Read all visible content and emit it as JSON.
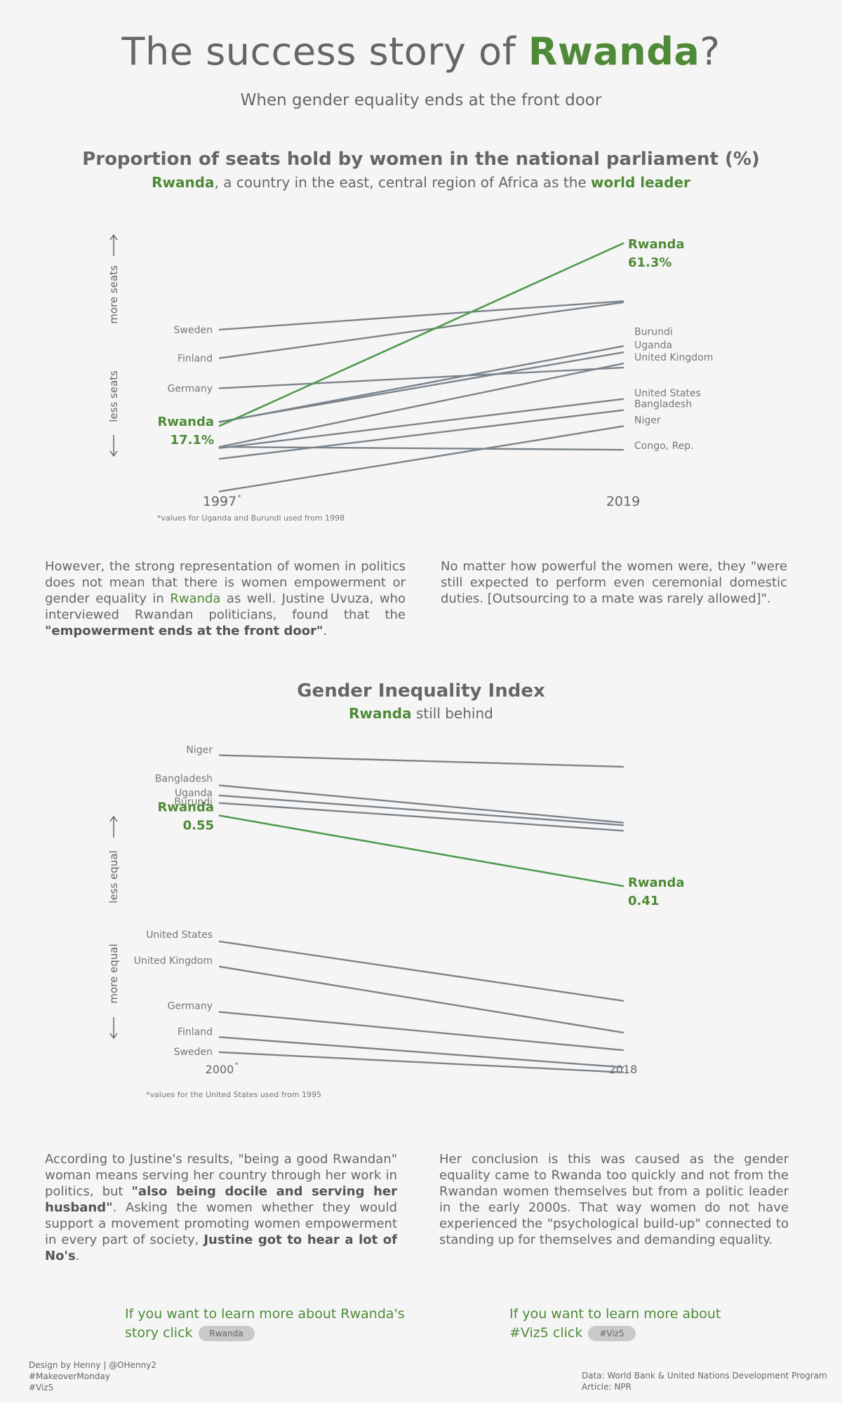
{
  "header": {
    "title_prefix": "The success story of ",
    "title_highlight": "Rwanda",
    "title_suffix": "?",
    "subtitle": "When gender equality ends at the front door"
  },
  "chart1": {
    "title": "Proportion of seats hold by women in the national parliament (%)",
    "subtitle_highlight": "Rwanda",
    "subtitle_middle": ", a country in the east, central region of Africa as the ",
    "subtitle_end": "world leader",
    "axis_up_label": "more seats",
    "axis_down_label": "less seats",
    "footnote": "*values for Uganda and Burundi used from 1998"
  },
  "para1": {
    "part1": "However, the strong representation of women in politics does not mean that there is women empowerment or gender equality in ",
    "highlight": "Rwanda",
    "part2": " as well. Justine Uvuza, who interviewed Rwandan politicians, found that the ",
    "bold": "\"empowerment ends at the front door\"",
    "part3": "."
  },
  "para2": {
    "text": "No matter how powerful the women were, they \"were still expected to perform even ceremonial domestic duties. [Outsourcing to a mate was rarely allowed]\"."
  },
  "chart2": {
    "title": "Gender Inequality Index",
    "subtitle_highlight": "Rwanda",
    "subtitle_rest": " still behind",
    "axis_up_label": "less equal",
    "axis_down_label": "more equal",
    "footnote": "*values for the United States used from 1995"
  },
  "para3": {
    "part1": "According to Justine's results, \"being a good Rwandan\" woman means serving her country through her work in politics, but ",
    "bold1": "\"also being docile and serving her husband\"",
    "part2": ". Asking the women whether they would support a movement promoting women empowerment in every part of society, ",
    "bold2": "Justine got to hear a lot of No's",
    "part3": "."
  },
  "para4": {
    "text": "Her conclusion is this was caused as the gender equality came to Rwanda too quickly and not from the Rwandan women themselves but from a politic leader in the early 2000s. That way women do not have experienced the \"psychological build-up\" connected to standing up for themselves and demanding equality."
  },
  "cta_left": {
    "text": "If you want to learn more about Rwanda's story click",
    "button": "Rwanda"
  },
  "cta_right": {
    "text": "If you want to learn more about #Viz5 click",
    "button": "#Viz5"
  },
  "footer_left": {
    "line1": "Design by Henny | @OHenny2",
    "line2": "#MakeoverMonday",
    "line3": "#Viz5"
  },
  "footer_right": {
    "line1": "Data: World Bank & United Nations Development Program",
    "line2": "Article: NPR"
  },
  "colors": {
    "accent": "#4e8a37",
    "rwanda_line": "#4f9a4f",
    "other_line": "#7b848b",
    "background": "#f5f5f5"
  },
  "chart_data": [
    {
      "type": "line",
      "title": "Proportion of seats hold by women in the national parliament (%)",
      "x": [
        "1997*",
        "2019"
      ],
      "ylim": [
        3,
        64
      ],
      "series": [
        {
          "name": "Rwanda",
          "values": [
            17.1,
            61.3
          ],
          "highlight": true,
          "value_labels": [
            "17.1%",
            "61.3%"
          ]
        },
        {
          "name": "Sweden",
          "values": [
            40.4,
            47.3
          ]
        },
        {
          "name": "Finland",
          "values": [
            33.5,
            47.0
          ]
        },
        {
          "name": "Germany",
          "values": [
            26.2,
            31.2
          ]
        },
        {
          "name": "Burundi",
          "values": [
            18.0,
            36.4
          ]
        },
        {
          "name": "Uganda",
          "values": [
            18.1,
            34.9
          ]
        },
        {
          "name": "United Kingdom",
          "values": [
            12.0,
            32.2
          ]
        },
        {
          "name": "United States",
          "values": [
            11.7,
            23.6
          ]
        },
        {
          "name": "Bangladesh",
          "values": [
            9.1,
            20.9
          ]
        },
        {
          "name": "Niger",
          "values": [
            1.2,
            17.0
          ]
        },
        {
          "name": "Congo, Rep.",
          "values": [
            12.0,
            11.3
          ]
        }
      ]
    },
    {
      "type": "line",
      "title": "Gender Inequality Index",
      "x": [
        "2000*",
        "2018"
      ],
      "ylim": [
        0.02,
        0.7
      ],
      "series": [
        {
          "name": "Niger",
          "values": [
            0.67,
            0.647
          ]
        },
        {
          "name": "Bangladesh",
          "values": [
            0.61,
            0.536
          ]
        },
        {
          "name": "Uganda",
          "values": [
            0.59,
            0.531
          ]
        },
        {
          "name": "Burundi",
          "values": [
            0.575,
            0.52
          ]
        },
        {
          "name": "Rwanda",
          "values": [
            0.55,
            0.41
          ],
          "highlight": true,
          "value_labels": [
            "0.55",
            "0.41"
          ]
        },
        {
          "name": "United States",
          "values": [
            0.3,
            0.182
          ]
        },
        {
          "name": "United Kingdom",
          "values": [
            0.25,
            0.119
          ]
        },
        {
          "name": "Germany",
          "values": [
            0.16,
            0.084
          ]
        },
        {
          "name": "Finland",
          "values": [
            0.11,
            0.05
          ]
        },
        {
          "name": "Sweden",
          "values": [
            0.08,
            0.04
          ]
        }
      ]
    }
  ]
}
